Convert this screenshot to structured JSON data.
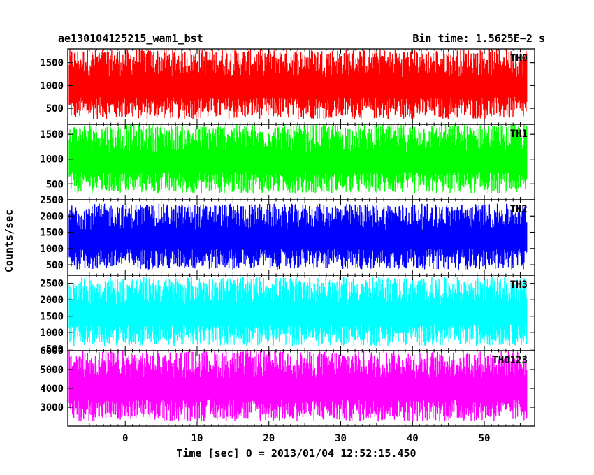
{
  "header": {
    "title": "ae130104125215_wam1_bst",
    "bin_time": "Bin time: 1.5625E−2 s"
  },
  "chart_data": {
    "type": "line",
    "title": "ae130104125215_wam1_bst",
    "xlabel": "Time [sec] 0 = 2013/01/04 12:52:15.450",
    "ylabel": "Counts/sec",
    "xlim": [
      -8,
      57
    ],
    "x_ticks": [
      0,
      10,
      20,
      30,
      40,
      50
    ],
    "x_range_data": [
      -7.8,
      55.9
    ],
    "grid": false,
    "panels": [
      {
        "name": "TH0",
        "color": "#ff0000",
        "ylim": [
          150,
          1800
        ],
        "yticks": [
          500,
          1000,
          1500
        ],
        "range": [
          180,
          1800
        ]
      },
      {
        "name": "TH1",
        "color": "#00ff00",
        "ylim": [
          180,
          1700
        ],
        "yticks": [
          500,
          1000,
          1500
        ],
        "range": [
          230,
          1700
        ]
      },
      {
        "name": "TH2",
        "color": "#0000ff",
        "ylim": [
          180,
          2500
        ],
        "yticks": [
          500,
          1000,
          1500,
          2000,
          2500
        ],
        "range": [
          250,
          2380
        ]
      },
      {
        "name": "TH3",
        "color": "#00ffff",
        "ylim": [
          450,
          2750
        ],
        "yticks": [
          500,
          1000,
          1500,
          2000,
          2500
        ],
        "range": [
          480,
          2700
        ]
      },
      {
        "name": "TH0123",
        "color": "#ff00ff",
        "ylim": [
          2000,
          6000
        ],
        "yticks": [
          3000,
          4000,
          5000,
          6000
        ],
        "range": [
          2050,
          6000
        ]
      }
    ]
  }
}
